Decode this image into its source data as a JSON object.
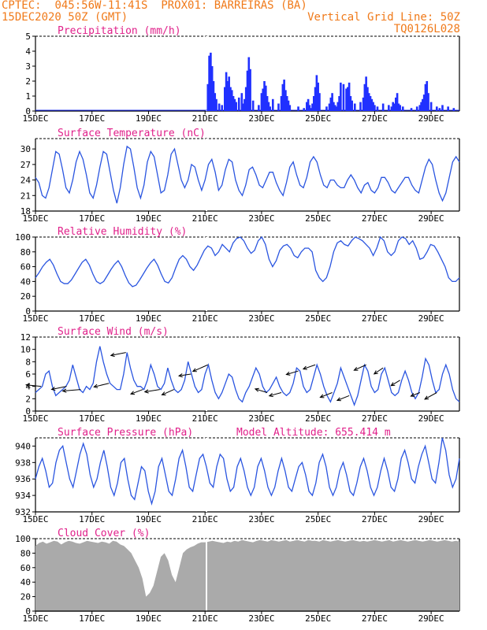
{
  "header": {
    "org": "CPTEC:",
    "coords": "045:56W-11:41S",
    "location": "PROX01: BARREIRAS (BA)",
    "run_time": "15DEC2020 50Z (GMT)",
    "grid_line": "Vertical Grid Line: 50Z",
    "model": "TQ0126L028"
  },
  "x_ticks": [
    "15DEC",
    "17DEC",
    "19DEC",
    "21DEC",
    "23DEC",
    "25DEC",
    "27DEC",
    "29DEC"
  ],
  "colors": {
    "line": "#2a55e0",
    "bar": "#2030ff",
    "fill": "#aaaaaa",
    "title": "#e0208a",
    "header": "#f07a1a",
    "arrow": "#000000"
  },
  "chart_data": [
    {
      "id": "precip",
      "type": "bar",
      "title": "Precipitation (mm/h)",
      "ylim": [
        0,
        5
      ],
      "yticks": [
        "0",
        "1",
        "2",
        "3",
        "4",
        "5"
      ],
      "grid": "dashed-top",
      "x_unit": "days since 15DEC 00Z",
      "values_x": [
        6.1,
        6.15,
        6.2,
        6.25,
        6.3,
        6.35,
        6.4,
        6.5,
        6.6,
        6.7,
        6.75,
        6.8,
        6.85,
        6.9,
        6.95,
        7.0,
        7.05,
        7.1,
        7.2,
        7.3,
        7.35,
        7.4,
        7.45,
        7.5,
        7.55,
        7.6,
        7.7,
        7.9,
        8.0,
        8.05,
        8.1,
        8.15,
        8.2,
        8.25,
        8.3,
        8.4,
        8.6,
        8.7,
        8.75,
        8.8,
        8.85,
        8.9,
        8.95,
        9.0,
        9.3,
        9.5,
        9.6,
        9.65,
        9.7,
        9.75,
        9.8,
        9.85,
        9.9,
        9.95,
        10.0,
        10.05,
        10.3,
        10.4,
        10.45,
        10.5,
        10.55,
        10.6,
        10.65,
        10.7,
        10.75,
        10.8,
        10.9,
        11.0,
        11.05,
        11.1,
        11.15,
        11.2,
        11.3,
        11.5,
        11.6,
        11.65,
        11.7,
        11.75,
        11.8,
        11.85,
        11.9,
        11.95,
        12.0,
        12.1,
        12.3,
        12.5,
        12.6,
        12.65,
        12.7,
        12.75,
        12.8,
        12.85,
        12.9,
        13.0,
        13.3,
        13.5,
        13.6,
        13.65,
        13.7,
        13.75,
        13.8,
        13.85,
        13.9,
        14.0,
        14.2,
        14.3,
        14.4,
        14.6,
        14.8
      ],
      "values": [
        1.8,
        3.7,
        3.9,
        3.0,
        2.0,
        1.2,
        0.8,
        0.5,
        0.4,
        1.6,
        2.6,
        2.0,
        2.3,
        1.6,
        1.4,
        1.0,
        0.8,
        0.6,
        0.9,
        1.2,
        0.5,
        0.8,
        1.6,
        2.7,
        3.6,
        2.8,
        0.7,
        0.4,
        1.2,
        1.5,
        2.0,
        1.7,
        1.0,
        0.6,
        0.3,
        0.8,
        0.5,
        1.0,
        1.8,
        2.1,
        1.4,
        1.0,
        0.7,
        0.4,
        0.3,
        0.2,
        0.6,
        0.8,
        0.4,
        0.2,
        0.5,
        1.0,
        1.6,
        2.4,
        1.9,
        1.2,
        0.3,
        0.5,
        0.9,
        1.2,
        0.6,
        0.4,
        0.3,
        0.6,
        1.0,
        1.9,
        1.8,
        1.5,
        1.6,
        1.9,
        1.0,
        0.7,
        0.5,
        0.6,
        0.9,
        1.8,
        2.3,
        1.6,
        1.2,
        1.0,
        0.8,
        0.6,
        0.4,
        0.3,
        0.5,
        0.4,
        0.3,
        0.6,
        0.5,
        0.9,
        1.2,
        0.5,
        0.4,
        0.3,
        0.2,
        0.3,
        0.4,
        0.6,
        0.8,
        1.1,
        1.8,
        2.0,
        1.2,
        0.6,
        0.3,
        0.2,
        0.4,
        0.3,
        0.2
      ]
    },
    {
      "id": "temp",
      "type": "line",
      "title": "Surface Temperature (nC)",
      "ylim": [
        18,
        32
      ],
      "yticks": [
        "18",
        "21",
        "24",
        "27",
        "30"
      ],
      "x_unit": "days since 15DEC 00Z",
      "values": [
        24.5,
        23.5,
        21,
        20.5,
        22.5,
        26,
        29.5,
        29,
        26,
        22.5,
        21.5,
        24,
        27.5,
        29.5,
        28,
        25,
        21.5,
        20.5,
        23,
        26.5,
        29.5,
        29,
        25.5,
        22,
        19.5,
        22.5,
        27,
        30.5,
        30,
        26.5,
        22.5,
        20.5,
        23,
        27.5,
        29.5,
        28.5,
        25,
        21.5,
        22,
        25,
        29,
        30,
        27,
        24,
        22.5,
        24,
        27,
        26.5,
        24,
        22,
        24,
        27,
        28,
        25.5,
        22,
        23,
        26,
        28,
        27.5,
        24,
        22,
        21,
        23,
        26,
        26.5,
        25,
        23,
        22.5,
        24,
        25.5,
        25.5,
        23.5,
        22,
        21,
        23.5,
        26.5,
        27.5,
        25,
        23,
        22.5,
        24.5,
        27.5,
        28.5,
        27.5,
        25,
        23,
        22.5,
        24,
        24,
        23,
        22.5,
        22.5,
        24,
        25,
        24,
        22.5,
        21.5,
        23,
        23.5,
        22,
        21.5,
        22.5,
        24.5,
        24.5,
        23.5,
        22,
        21.5,
        22.5,
        23.5,
        24.5,
        24.5,
        23,
        22,
        21.5,
        24,
        26.5,
        28,
        27,
        24,
        21.5,
        20,
        21.5,
        24.5,
        27.5,
        28.5,
        27.5
      ]
    },
    {
      "id": "rh",
      "type": "line",
      "title": "Relative Humidity (%)",
      "ylim": [
        0,
        100
      ],
      "yticks": [
        "0",
        "20",
        "40",
        "60",
        "80",
        "100"
      ],
      "x_unit": "days since 15DEC 00Z",
      "values": [
        45,
        52,
        60,
        66,
        70,
        62,
        50,
        40,
        37,
        37,
        42,
        50,
        58,
        66,
        70,
        62,
        50,
        40,
        37,
        40,
        48,
        56,
        63,
        68,
        60,
        48,
        38,
        33,
        35,
        42,
        50,
        58,
        65,
        70,
        62,
        50,
        40,
        38,
        45,
        58,
        70,
        75,
        70,
        60,
        55,
        62,
        72,
        82,
        88,
        85,
        75,
        80,
        90,
        85,
        80,
        92,
        98,
        100,
        95,
        85,
        78,
        82,
        95,
        100,
        90,
        70,
        60,
        68,
        82,
        88,
        90,
        85,
        75,
        72,
        80,
        85,
        85,
        80,
        55,
        45,
        40,
        45,
        60,
        80,
        92,
        95,
        90,
        88,
        95,
        100,
        98,
        95,
        90,
        85,
        75,
        85,
        100,
        95,
        80,
        75,
        80,
        95,
        100,
        98,
        90,
        95,
        85,
        70,
        72,
        80,
        90,
        88,
        80,
        70,
        60,
        45,
        40,
        40,
        45
      ]
    },
    {
      "id": "wind",
      "type": "line",
      "title": "Surface Wind (m/s)",
      "ylim": [
        0,
        12
      ],
      "yticks": [
        "0",
        "2",
        "4",
        "6",
        "8",
        "10",
        "12"
      ],
      "x_unit": "days since 15DEC 00Z",
      "values": [
        3,
        3.5,
        4,
        6,
        6.5,
        4,
        2.5,
        3,
        3.5,
        4,
        5,
        7.5,
        5.5,
        3.5,
        3,
        4,
        3.5,
        4.5,
        8,
        10.5,
        8,
        6,
        4.5,
        4,
        3.5,
        3.5,
        6,
        9.5,
        7,
        5,
        4,
        4,
        3.5,
        5,
        7.5,
        6,
        4,
        3.5,
        4.5,
        7,
        5,
        3.5,
        3,
        3.5,
        5,
        8,
        6,
        4,
        3,
        3.5,
        6,
        7.5,
        5,
        3,
        2,
        3,
        4.5,
        6,
        5.5,
        3.5,
        2,
        1.5,
        3,
        4,
        5.5,
        7,
        6,
        4,
        3,
        3.5,
        4.5,
        5.5,
        4,
        3,
        2.5,
        3,
        4.5,
        7,
        6.5,
        4,
        3,
        3.5,
        5.5,
        7.5,
        6,
        4,
        2.5,
        1.5,
        3,
        4.5,
        7,
        5.5,
        4,
        2.5,
        1,
        2.5,
        5,
        7.5,
        6.5,
        4,
        3,
        3.5,
        6,
        7,
        5,
        3,
        2.5,
        3,
        5,
        6.5,
        5,
        3,
        2,
        3,
        5.5,
        8.5,
        7.5,
        5,
        3,
        3.5,
        6,
        7.5,
        6,
        3.5,
        2,
        1.5
      ],
      "arrow_days": [
        0.2,
        1.1,
        1.6,
        2.6,
        3.2,
        3.8,
        4.4,
        4.9,
        5.5,
        6.1,
        8.2,
        8.7,
        9.3,
        9.9,
        10.5,
        11.1,
        11.7,
        12.3,
        12.9,
        13.6,
        14.2
      ],
      "arrow_u": [
        -5,
        -5,
        -6,
        -5,
        -5,
        -4,
        -5,
        -4,
        -4,
        -5,
        -4,
        -4,
        -4,
        -4,
        -4,
        -4,
        -4,
        -3,
        -3,
        -3,
        -4
      ],
      "arrow_v": [
        0.5,
        -1,
        -0.5,
        -1.2,
        -1,
        -1.5,
        -0.8,
        -1.8,
        -0.6,
        -2.2,
        1.2,
        -1.1,
        -1.2,
        -1.4,
        -1.6,
        -1.6,
        -1.8,
        -2,
        -1.8,
        -1.2,
        -2.2
      ]
    },
    {
      "id": "pres",
      "type": "line",
      "title": "Surface Pressure (hPa)",
      "annotation": "Model Altitude: 655.414 m",
      "ylim": [
        932,
        941
      ],
      "yticks": [
        "932",
        "934",
        "936",
        "938",
        "940"
      ],
      "x_unit": "days since 15DEC 00Z",
      "values": [
        936,
        937.5,
        938.5,
        937,
        935,
        935.5,
        938,
        939.5,
        940,
        938,
        936,
        935,
        937,
        939,
        940.3,
        939,
        936.5,
        935,
        936,
        938,
        939.5,
        937.5,
        935,
        934,
        935.5,
        938,
        938.5,
        936,
        934,
        933.5,
        935.5,
        937.5,
        937,
        934.5,
        933,
        934.5,
        937.5,
        938.5,
        936.5,
        934.5,
        934,
        936,
        938.5,
        939.5,
        937.5,
        935,
        934.5,
        936.5,
        938.5,
        939,
        937.5,
        935.5,
        935,
        937.5,
        939,
        938.5,
        936,
        934.5,
        935,
        937.5,
        938.5,
        937,
        935,
        934,
        935,
        937.5,
        938.5,
        937,
        935,
        934,
        935,
        937,
        938.5,
        937,
        935,
        934.5,
        936,
        937.5,
        938,
        936.5,
        934.5,
        934,
        935.5,
        938,
        939,
        937.5,
        935,
        934,
        935,
        937,
        938,
        936.5,
        934.5,
        934,
        935.5,
        937.5,
        938.5,
        937,
        935,
        934,
        935,
        937,
        938.5,
        937,
        935,
        934.5,
        936,
        938.5,
        939.5,
        938,
        936,
        935.5,
        937.5,
        939,
        940,
        938,
        936,
        935.5,
        938,
        941,
        939.5,
        936.5,
        935,
        936,
        938.5
      ]
    },
    {
      "id": "cloud",
      "type": "area",
      "title": "Cloud Cover (%)",
      "ylim": [
        0,
        100
      ],
      "yticks": [
        "0",
        "20",
        "40",
        "60",
        "80",
        "100"
      ],
      "x_unit": "days since 15DEC 00Z",
      "values": [
        90,
        94,
        96,
        93,
        95,
        97,
        96,
        92,
        95,
        97,
        96,
        94,
        93,
        95,
        97,
        96,
        95,
        94,
        96,
        95,
        93,
        97,
        96,
        92,
        90,
        85,
        80,
        70,
        60,
        45,
        20,
        25,
        35,
        55,
        75,
        80,
        70,
        50,
        40,
        60,
        80,
        85,
        88,
        90,
        93,
        95,
        95,
        96,
        97,
        96,
        95,
        94,
        96,
        95,
        97,
        96,
        98,
        97,
        96,
        95,
        97,
        98,
        97,
        96,
        98,
        97,
        96,
        97,
        98,
        96,
        97,
        98,
        97,
        96,
        98,
        97,
        97,
        96,
        98,
        97,
        96,
        97,
        98,
        97,
        96,
        97,
        98,
        97,
        96,
        97,
        96,
        97,
        98,
        97,
        96,
        97,
        98,
        96,
        97,
        98,
        97,
        96,
        97,
        98,
        97,
        96,
        97,
        98,
        97,
        96,
        97,
        98,
        97,
        96,
        97,
        96
      ]
    }
  ]
}
